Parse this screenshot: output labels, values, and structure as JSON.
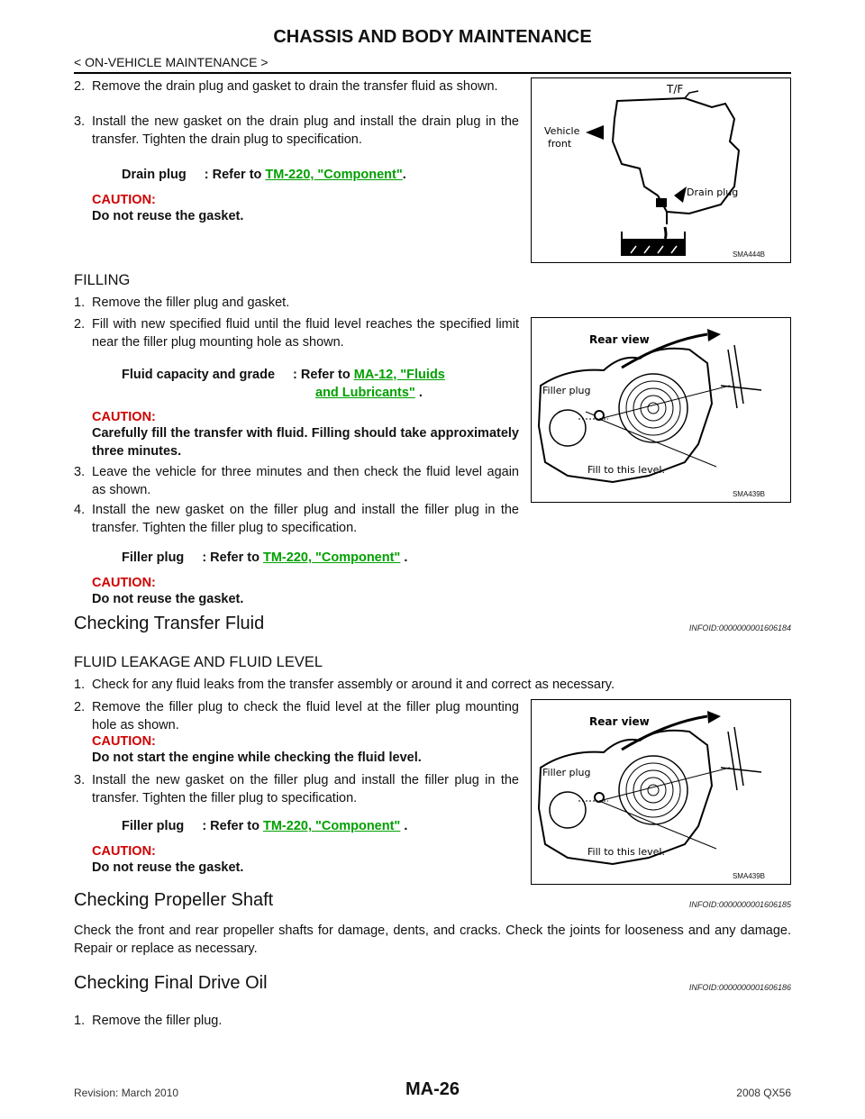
{
  "header": {
    "title": "CHASSIS AND BODY MAINTENANCE",
    "subtitle": "< ON-VEHICLE MAINTENANCE >"
  },
  "draining": {
    "step2_num": "2.",
    "step2": "Remove the drain plug and gasket to drain the transfer fluid as shown.",
    "step3_num": "3.",
    "step3": "Install the new gasket on the drain plug and install the drain plug in the transfer. Tighten the drain plug to specification.",
    "spec_label": "Drain plug",
    "spec_refer": ": Refer to",
    "spec_link": "TM-220, \"Component\"",
    "spec_end": ".",
    "caution_label": "CAUTION:",
    "caution_text": "Do not reuse the gasket."
  },
  "figure1": {
    "tf_label": "T/F",
    "vehicle_front_1": "Vehicle",
    "vehicle_front_2": "front",
    "drain_label": "Drain plug",
    "id": "SMA444B"
  },
  "filling": {
    "heading": "FILLING",
    "step1_num": "1.",
    "step1": "Remove the filler plug and gasket.",
    "step2_num": "2.",
    "step2": "Fill with new specified fluid until the fluid level reaches the specified limit near the filler plug mounting hole as shown.",
    "spec_label": "Fluid capacity and grade",
    "spec_refer": ": Refer to",
    "spec_link_1": "MA-12, \"Fluids",
    "spec_link_2": "and Lubricants\"",
    "spec_end": ".",
    "caution1_label": "CAUTION:",
    "caution1_text": "Carefully fill the transfer with fluid. Filling should take approximately three minutes.",
    "step3_num": "3.",
    "step3": "Leave the vehicle for three minutes and then check the fluid level again as shown.",
    "step4_num": "4.",
    "step4": "Install the new gasket on the filler plug and install the filler plug in the transfer. Tighten the filler plug to specification.",
    "spec2_label": "Filler plug",
    "spec2_refer": ": Refer to",
    "spec2_link": "TM-220, \"Component\"",
    "spec2_end": ".",
    "caution2_label": "CAUTION:",
    "caution2_text": "Do not reuse the gasket."
  },
  "figure2": {
    "rear_view": "Rear view",
    "filler_plug": "Filler plug",
    "fill_level": "Fill to this level.",
    "id": "SMA439B"
  },
  "checking_fluid": {
    "heading": "Checking Transfer Fluid",
    "info_id": "INFOID:0000000001606184",
    "subheading": "FLUID LEAKAGE AND FLUID LEVEL",
    "step1_num": "1.",
    "step1": "Check for any fluid leaks from the transfer assembly or around it and correct as necessary.",
    "step2_num": "2.",
    "step2": "Remove the filler plug to check the fluid level at the filler plug mounting hole as shown.",
    "caution1_label": "CAUTION:",
    "caution1_text": "Do not start the engine while checking the fluid level.",
    "step3_num": "3.",
    "step3": "Install the new gasket on the filler plug and install the filler plug in the transfer. Tighten the filler plug to specification.",
    "spec_label": "Filler plug",
    "spec_refer": ": Refer to",
    "spec_link": "TM-220, \"Component\"",
    "spec_end": ".",
    "caution2_label": "CAUTION:",
    "caution2_text": "Do not reuse the gasket."
  },
  "figure3": {
    "rear_view": "Rear view",
    "filler_plug": "Filler plug",
    "fill_level": "Fill to this level.",
    "id": "SMA439B"
  },
  "propeller": {
    "heading": "Checking Propeller Shaft",
    "info_id": "INFOID:0000000001606185",
    "text": "Check the front and rear propeller shafts for damage, dents, and cracks. Check the joints for looseness and any damage. Repair or replace as necessary."
  },
  "final_drive": {
    "heading": "Checking Final Drive Oil",
    "info_id": "INFOID:0000000001606186",
    "step1_num": "1.",
    "step1": "Remove the filler plug."
  },
  "footer": {
    "revision": "Revision: March 2010",
    "page": "MA-26",
    "model": "2008 QX56"
  }
}
